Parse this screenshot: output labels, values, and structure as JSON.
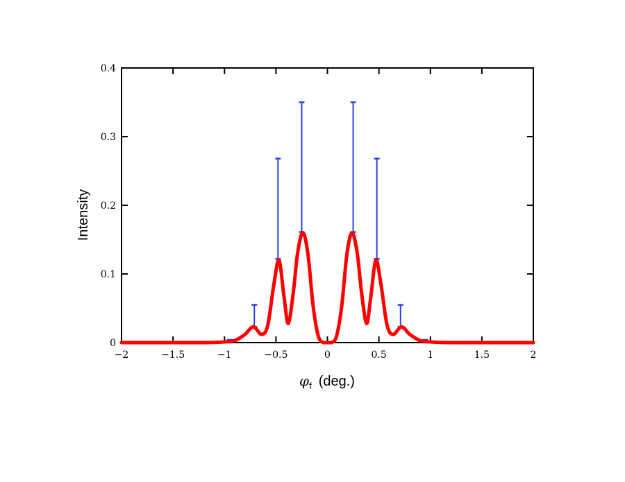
{
  "chart_data": {
    "type": "line",
    "ylabel": "Intensity",
    "xlabel": {
      "symbol": "φ",
      "subscript": "f",
      "unit": "(deg.)"
    },
    "xlim": [
      -2,
      2
    ],
    "ylim": [
      0,
      0.4
    ],
    "x_ticks": [
      -2,
      -1.5,
      -1,
      -0.5,
      0,
      0.5,
      1,
      1.5,
      2
    ],
    "x_tick_labels": [
      "−2",
      "−1.5",
      "−1",
      "−0.5",
      "0",
      "0.5",
      "1",
      "1.5",
      "2"
    ],
    "y_ticks": [
      0,
      0.1,
      0.2,
      0.3,
      0.4
    ],
    "y_tick_labels": [
      "0",
      "0.1",
      "0.2",
      "0.3",
      "0.4"
    ],
    "grid": false,
    "series": [
      {
        "kind": "curve",
        "color": "#ff0000",
        "x": [
          -2,
          -1.2,
          -1.0,
          -0.9,
          -0.8,
          -0.72,
          -0.64,
          -0.58,
          -0.52,
          -0.47,
          -0.42,
          -0.38,
          -0.33,
          -0.29,
          -0.24,
          -0.19,
          -0.14,
          -0.09,
          -0.04,
          0,
          0.04,
          0.09,
          0.14,
          0.19,
          0.24,
          0.29,
          0.33,
          0.38,
          0.42,
          0.47,
          0.52,
          0.58,
          0.64,
          0.72,
          0.8,
          0.9,
          1.0,
          1.2,
          2
        ],
        "y": [
          0,
          0,
          0.001,
          0.003,
          0.012,
          0.023,
          0.012,
          0.025,
          0.085,
          0.12,
          0.065,
          0.028,
          0.075,
          0.13,
          0.16,
          0.13,
          0.055,
          0.01,
          0.0,
          0,
          0.0,
          0.01,
          0.055,
          0.13,
          0.16,
          0.13,
          0.075,
          0.028,
          0.065,
          0.12,
          0.085,
          0.025,
          0.012,
          0.023,
          0.012,
          0.003,
          0.001,
          0,
          0
        ]
      },
      {
        "kind": "errorbars",
        "color": "#2a3fe0",
        "points": [
          {
            "x": -1.2,
            "low": 0.0,
            "high": 0.001
          },
          {
            "x": -0.95,
            "low": 0.0,
            "high": 0.004
          },
          {
            "x": -0.71,
            "low": 0.023,
            "high": 0.055
          },
          {
            "x": -0.48,
            "low": 0.122,
            "high": 0.268
          },
          {
            "x": -0.25,
            "low": 0.161,
            "high": 0.35
          },
          {
            "x": 0.0,
            "low": 0.0,
            "high": 0.001
          },
          {
            "x": 0.25,
            "low": 0.161,
            "high": 0.35
          },
          {
            "x": 0.48,
            "low": 0.122,
            "high": 0.268
          },
          {
            "x": 0.71,
            "low": 0.023,
            "high": 0.055
          },
          {
            "x": 0.95,
            "low": 0.0,
            "high": 0.004
          },
          {
            "x": 1.2,
            "low": 0.0,
            "high": 0.001
          }
        ]
      }
    ]
  }
}
